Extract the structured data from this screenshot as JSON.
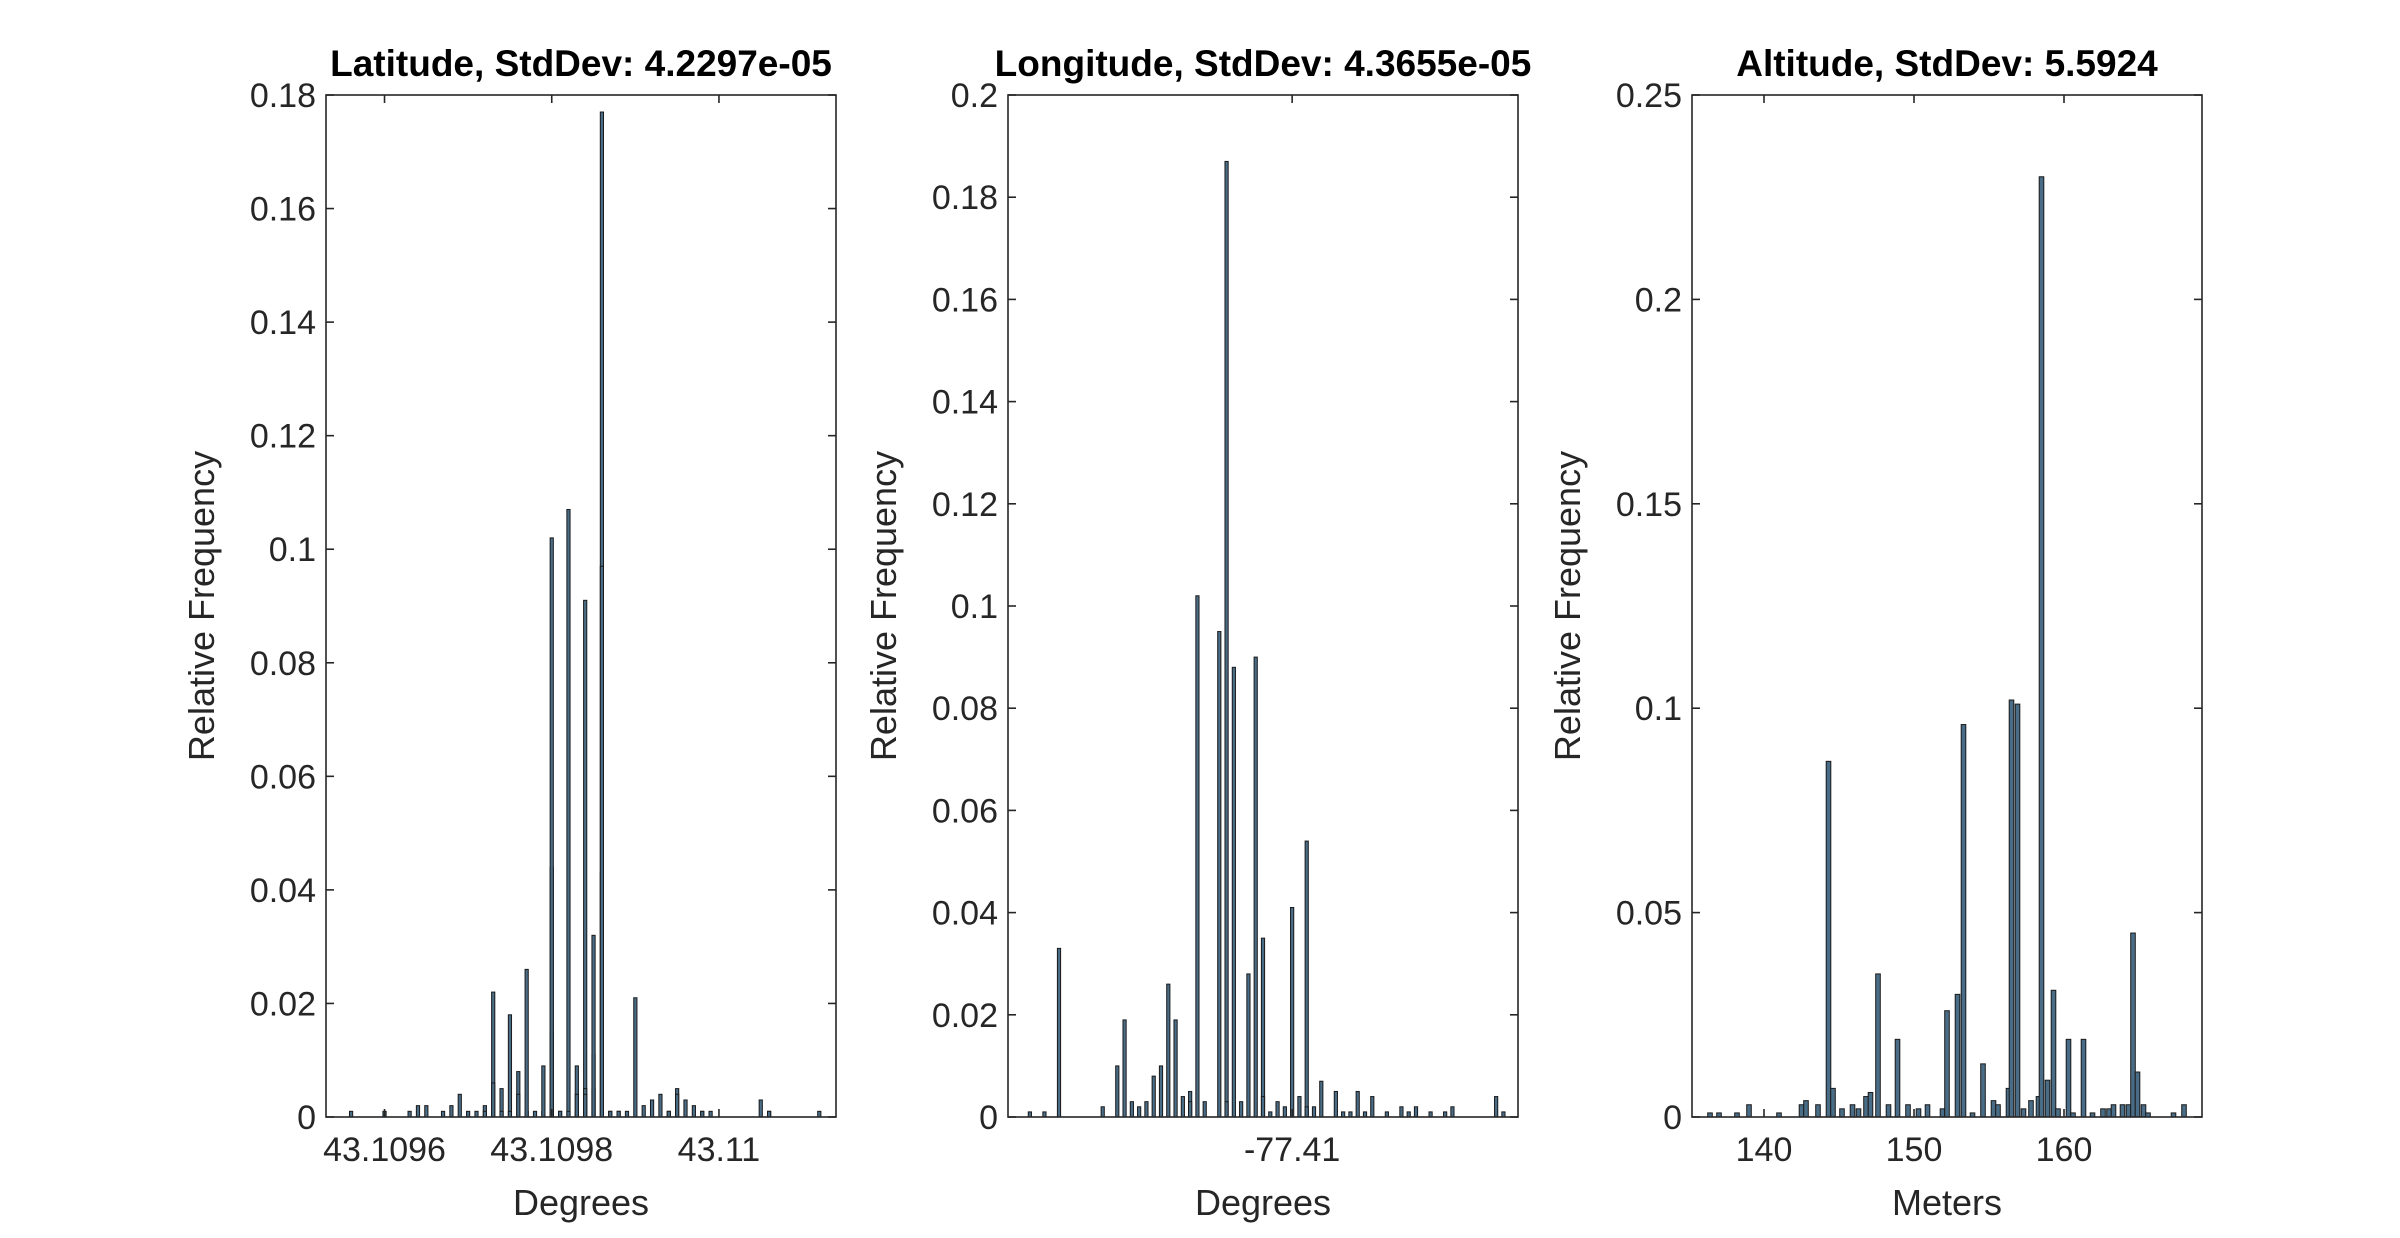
{
  "chart_data": [
    {
      "type": "bar",
      "title": "Latitude, StdDev: 4.2297e-05",
      "xlabel": "Degrees",
      "ylabel": "Relative Frequency",
      "xlim": [
        43.10953,
        43.11014
      ],
      "ylim": [
        0,
        0.18
      ],
      "xticks": [
        43.1096,
        43.1098,
        43.11
      ],
      "xtick_labels": [
        "43.1096",
        "43.1098",
        "43.11"
      ],
      "yticks": [
        0,
        0.02,
        0.04,
        0.06,
        0.08,
        0.1,
        0.12,
        0.14,
        0.16,
        0.18
      ],
      "ytick_labels": [
        "0",
        "0.02",
        "0.04",
        "0.06",
        "0.08",
        "0.1",
        "0.12",
        "0.14",
        "0.16",
        "0.18"
      ],
      "x": [
        43.10956,
        43.1096,
        43.10963,
        43.10964,
        43.10965,
        43.10967,
        43.10968,
        43.10969,
        43.1097,
        43.10971,
        43.10972,
        43.10972,
        43.10973,
        43.10973,
        43.10974,
        43.10974,
        43.10975,
        43.10975,
        43.10976,
        43.10976,
        43.10977,
        43.10977,
        43.10978,
        43.10979,
        43.10979,
        43.1098,
        43.1098,
        43.1098,
        43.1098,
        43.10981,
        43.10981,
        43.10982,
        43.10982,
        43.10983,
        43.10983,
        43.10983,
        43.10984,
        43.10984,
        43.10984,
        43.10985,
        43.10985,
        43.10985,
        43.10986,
        43.10986,
        43.10986,
        43.10987,
        43.10987,
        43.10988,
        43.10988,
        43.10989,
        43.1099,
        43.10991,
        43.10992,
        43.10993,
        43.10994,
        43.10994,
        43.10995,
        43.10995,
        43.10996,
        43.10997,
        43.10998,
        43.10998,
        43.10999,
        43.11005,
        43.11006,
        43.11006,
        43.11012
      ],
      "values": [
        0.001,
        0.001,
        0.001,
        0.002,
        0.002,
        0.001,
        0.002,
        0.004,
        0.001,
        0.001,
        0.002,
        0.001,
        0.022,
        0.006,
        0.005,
        0.001,
        0.018,
        0.001,
        0.008,
        0.004,
        0.001,
        0.026,
        0.001,
        0.001,
        0.009,
        0.015,
        0.001,
        0.044,
        0.102,
        0.001,
        0.001,
        0.107,
        0.001,
        0.001,
        0.009,
        0.004,
        0.091,
        0.005,
        0.004,
        0.005,
        0.011,
        0.032,
        0.177,
        0.043,
        0.097,
        0.001,
        0.001,
        0.001,
        0.001,
        0.001,
        0.021,
        0.002,
        0.003,
        0.004,
        0.001,
        0.001,
        0.005,
        0.004,
        0.003,
        0.002,
        0.001,
        0.001,
        0.001,
        0.003,
        0.001,
        0.001,
        0.001
      ]
    },
    {
      "type": "bar",
      "title": "Longitude, StdDev: 4.3655e-05",
      "xlabel": "Degrees",
      "ylabel": "Relative Frequency",
      "xlim": [
        -77.41039,
        -77.40969
      ],
      "ylim": [
        0,
        0.2
      ],
      "xticks": [
        -77.41
      ],
      "xtick_labels": [
        "-77.41"
      ],
      "yticks": [
        0,
        0.02,
        0.04,
        0.06,
        0.08,
        0.1,
        0.12,
        0.14,
        0.16,
        0.18,
        0.2
      ],
      "ytick_labels": [
        "0",
        "0.02",
        "0.04",
        "0.06",
        "0.08",
        "0.1",
        "0.12",
        "0.14",
        "0.16",
        "0.18",
        "0.2"
      ],
      "x": [
        -77.41036,
        -77.41034,
        -77.41032,
        -77.41026,
        -77.41024,
        -77.41023,
        -77.41022,
        -77.41021,
        -77.4102,
        -77.41019,
        -77.41018,
        -77.41017,
        -77.41016,
        -77.41015,
        -77.41014,
        -77.41014,
        -77.41013,
        -77.41012,
        -77.4101,
        -77.41009,
        -77.41009,
        -77.41008,
        -77.41007,
        -77.41006,
        -77.41005,
        -77.41004,
        -77.41004,
        -77.41003,
        -77.41002,
        -77.41001,
        -77.41,
        -77.40999,
        -77.40998,
        -77.40998,
        -77.40997,
        -77.40996,
        -77.40994,
        -77.40993,
        -77.40992,
        -77.40991,
        -77.4099,
        -77.40989,
        -77.40987,
        -77.40985,
        -77.40984,
        -77.40983,
        -77.40981,
        -77.40979,
        -77.40978,
        -77.40972,
        -77.40971
      ],
      "values": [
        0.001,
        0.001,
        0.033,
        0.002,
        0.01,
        0.019,
        0.003,
        0.002,
        0.003,
        0.008,
        0.01,
        0.026,
        0.019,
        0.004,
        0.005,
        0.003,
        0.102,
        0.003,
        0.095,
        0.187,
        0.003,
        0.088,
        0.003,
        0.028,
        0.09,
        0.035,
        0.004,
        0.001,
        0.003,
        0.002,
        0.041,
        0.004,
        0.054,
        0.002,
        0.002,
        0.007,
        0.005,
        0.001,
        0.001,
        0.005,
        0.001,
        0.004,
        0.001,
        0.002,
        0.001,
        0.002,
        0.001,
        0.001,
        0.002,
        0.004,
        0.001
      ]
    },
    {
      "type": "bar",
      "title": "Altitude, StdDev: 5.5924",
      "xlabel": "Meters",
      "ylabel": "Relative Frequency",
      "xlim": [
        135.2,
        169.2
      ],
      "ylim": [
        0,
        0.25
      ],
      "xticks": [
        140,
        150,
        160
      ],
      "xtick_labels": [
        "140",
        "150",
        "160"
      ],
      "yticks": [
        0,
        0.05,
        0.1,
        0.15,
        0.2,
        0.25
      ],
      "ytick_labels": [
        "0",
        "0.05",
        "0.1",
        "0.15",
        "0.2",
        "0.25"
      ],
      "x": [
        136.4,
        137.0,
        138.2,
        139.0,
        141.0,
        142.5,
        142.8,
        143.6,
        144.3,
        144.6,
        145.2,
        145.9,
        146.3,
        146.8,
        147.1,
        147.6,
        148.3,
        148.9,
        149.6,
        150.3,
        150.9,
        151.9,
        152.2,
        152.9,
        153.3,
        153.9,
        154.6,
        155.3,
        155.6,
        156.3,
        156.5,
        156.9,
        157.3,
        157.8,
        158.3,
        158.5,
        158.9,
        159.3,
        159.6,
        160.3,
        160.6,
        161.3,
        161.9,
        162.6,
        163.0,
        163.3,
        163.9,
        164.3,
        164.6,
        164.9,
        165.3,
        165.6,
        167.3,
        168.0
      ],
      "values": [
        0.001,
        0.001,
        0.001,
        0.003,
        0.001,
        0.003,
        0.004,
        0.003,
        0.087,
        0.007,
        0.002,
        0.003,
        0.002,
        0.005,
        0.006,
        0.035,
        0.003,
        0.019,
        0.003,
        0.002,
        0.003,
        0.002,
        0.026,
        0.03,
        0.096,
        0.001,
        0.013,
        0.004,
        0.003,
        0.007,
        0.102,
        0.101,
        0.002,
        0.004,
        0.005,
        0.23,
        0.009,
        0.031,
        0.002,
        0.019,
        0.001,
        0.019,
        0.001,
        0.002,
        0.002,
        0.003,
        0.003,
        0.003,
        0.045,
        0.011,
        0.003,
        0.001,
        0.001,
        0.003
      ]
    }
  ]
}
